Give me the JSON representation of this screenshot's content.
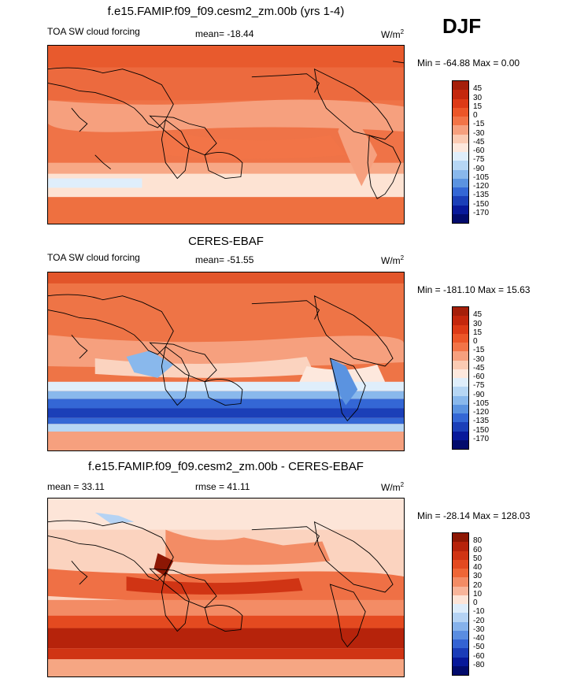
{
  "season": "DJF",
  "panels": [
    {
      "title": "f.e15.FAMIP.f09_f09.cesm2_zm.00b (yrs 1-4)",
      "left_label": "TOA SW cloud forcing",
      "center_label": "mean= -18.44",
      "units": "W/m",
      "units_sup": "2",
      "minmax": "Min = -64.88 Max =   0.00",
      "scale_labels": [
        "45",
        "30",
        "15",
        "0",
        "-15",
        "-30",
        "-45",
        "-60",
        "-75",
        "-90",
        "-105",
        "-120",
        "-135",
        "-150",
        "-170"
      ],
      "scale_colors": [
        "#a51f0a",
        "#c4270d",
        "#dd3a16",
        "#ec5628",
        "#f27447",
        "#f6a07e",
        "#fbcbb3",
        "#fde8dd",
        "#dfeefb",
        "#b6d6f4",
        "#89b8ec",
        "#5b93e0",
        "#3467d5",
        "#1b3fb8",
        "#08199a",
        "#020b6c"
      ],
      "map_regions": {
        "north": "#ec6a3e",
        "tropics": "#ef7347",
        "south_band": "#f8bfa3",
        "polar": "#ee7040"
      }
    },
    {
      "title": "CERES-EBAF",
      "left_label": "TOA SW cloud forcing",
      "center_label": "mean= -51.55",
      "units": "W/m",
      "units_sup": "2",
      "minmax": "Min = -181.10 Max = 15.63",
      "scale_labels": [
        "45",
        "30",
        "15",
        "0",
        "-15",
        "-30",
        "-45",
        "-60",
        "-75",
        "-90",
        "-105",
        "-120",
        "-135",
        "-150",
        "-170"
      ],
      "scale_colors": [
        "#a51f0a",
        "#c4270d",
        "#dd3a16",
        "#ec5628",
        "#f27447",
        "#f6a07e",
        "#fbcbb3",
        "#fde8dd",
        "#dfeefb",
        "#b6d6f4",
        "#89b8ec",
        "#5b93e0",
        "#3467d5",
        "#1b3fb8",
        "#08199a",
        "#020b6c"
      ],
      "map_regions": {
        "north": "#ee7446",
        "tropics": "#f7b59a",
        "south_band": "#1e44c4",
        "polar": "#f08a63"
      }
    },
    {
      "title": "f.e15.FAMIP.f09_f09.cesm2_zm.00b - CERES-EBAF",
      "left_label": "mean =  33.11",
      "center_label": "rmse =  41.11",
      "units": "W/m",
      "units_sup": "2",
      "minmax": "Min = -28.14 Max = 128.03",
      "scale_labels": [
        "80",
        "60",
        "50",
        "40",
        "30",
        "20",
        "10",
        "0",
        "-10",
        "-20",
        "-30",
        "-40",
        "-50",
        "-60",
        "-80"
      ],
      "scale_colors": [
        "#8d1704",
        "#b6230b",
        "#d03414",
        "#e44a20",
        "#ef6636",
        "#f38c65",
        "#f8b59a",
        "#fde5d8",
        "#deedfb",
        "#b5d3f4",
        "#86b2eb",
        "#5a8de0",
        "#3463d3",
        "#1a3cb8",
        "#071899",
        "#020b6c"
      ],
      "map_regions": {
        "north": "#fbd3bf",
        "tropics": "#ef7045",
        "south_band": "#b6260d",
        "polar": "#f6a683"
      }
    }
  ]
}
